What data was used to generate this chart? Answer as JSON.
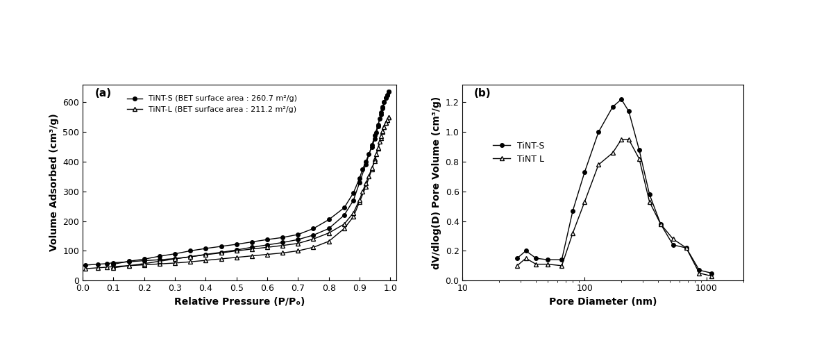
{
  "fig_width": 11.9,
  "fig_height": 4.87,
  "background_color": "#ffffff",
  "panel_a": {
    "label": "(a)",
    "xlabel": "Relative Pressure (P/Pₒ)",
    "ylabel": "Volume Adsorbed (cm³/g)",
    "xlim": [
      0.0,
      1.02
    ],
    "ylim": [
      0,
      660
    ],
    "yticks": [
      0,
      100,
      200,
      300,
      400,
      500,
      600
    ],
    "xticks": [
      0.0,
      0.1,
      0.2,
      0.3,
      0.4,
      0.5,
      0.6,
      0.7,
      0.8,
      0.9,
      1.0
    ],
    "tints_adsorption_x": [
      0.01,
      0.05,
      0.08,
      0.1,
      0.15,
      0.2,
      0.25,
      0.3,
      0.35,
      0.4,
      0.45,
      0.5,
      0.55,
      0.6,
      0.65,
      0.7,
      0.75,
      0.8,
      0.85,
      0.88,
      0.9,
      0.92,
      0.94,
      0.95,
      0.96,
      0.97,
      0.975,
      0.98,
      0.985,
      0.99,
      0.995
    ],
    "tints_adsorption_y": [
      52,
      55,
      57,
      60,
      63,
      67,
      70,
      74,
      80,
      88,
      95,
      103,
      112,
      120,
      128,
      138,
      153,
      175,
      220,
      270,
      330,
      390,
      455,
      490,
      525,
      560,
      580,
      600,
      615,
      625,
      635
    ],
    "tints_desorption_x": [
      0.995,
      0.99,
      0.985,
      0.98,
      0.975,
      0.97,
      0.965,
      0.96,
      0.955,
      0.95,
      0.94,
      0.93,
      0.92,
      0.91,
      0.9,
      0.88,
      0.85,
      0.8,
      0.75,
      0.7,
      0.65,
      0.6,
      0.55,
      0.5,
      0.45,
      0.4,
      0.35,
      0.3,
      0.25,
      0.2,
      0.15,
      0.1
    ],
    "tints_desorption_y": [
      635,
      625,
      615,
      600,
      585,
      565,
      545,
      520,
      498,
      478,
      450,
      425,
      400,
      375,
      345,
      295,
      245,
      205,
      175,
      155,
      145,
      138,
      130,
      122,
      115,
      108,
      100,
      90,
      82,
      72,
      65,
      55
    ],
    "tintl_adsorption_x": [
      0.01,
      0.05,
      0.08,
      0.1,
      0.15,
      0.2,
      0.25,
      0.3,
      0.35,
      0.4,
      0.45,
      0.5,
      0.55,
      0.6,
      0.65,
      0.7,
      0.75,
      0.8,
      0.85,
      0.88,
      0.9,
      0.92,
      0.94,
      0.95,
      0.96,
      0.97,
      0.975,
      0.98,
      0.985,
      0.99,
      0.995
    ],
    "tintl_adsorption_y": [
      40,
      43,
      45,
      47,
      50,
      53,
      56,
      59,
      63,
      68,
      73,
      78,
      83,
      88,
      93,
      100,
      112,
      132,
      175,
      215,
      265,
      315,
      375,
      410,
      445,
      480,
      500,
      517,
      530,
      540,
      550
    ],
    "tintl_desorption_x": [
      0.995,
      0.99,
      0.985,
      0.98,
      0.975,
      0.97,
      0.965,
      0.96,
      0.955,
      0.95,
      0.94,
      0.93,
      0.92,
      0.91,
      0.9,
      0.88,
      0.85,
      0.8,
      0.75,
      0.7,
      0.65,
      0.6,
      0.55,
      0.5,
      0.45,
      0.4,
      0.35,
      0.3,
      0.25,
      0.2,
      0.15,
      0.1
    ],
    "tintl_desorption_y": [
      550,
      540,
      530,
      518,
      504,
      487,
      467,
      447,
      425,
      403,
      378,
      352,
      327,
      300,
      272,
      228,
      190,
      160,
      140,
      125,
      118,
      112,
      106,
      100,
      93,
      87,
      80,
      73,
      65,
      57,
      50,
      43
    ],
    "legend_tints": "TiNT-S (BET surface area : 260.7 m²/g)",
    "legend_tintl": "TiNT-L (BET surface area : 211.2 m²/g)"
  },
  "panel_b": {
    "label": "(b)",
    "xlabel": "Pore Diameter (nm)",
    "ylabel": "dV/dlog(D) Pore Volume (cm³/g)",
    "xlim": [
      10,
      2000
    ],
    "ylim": [
      0,
      1.32
    ],
    "yticks": [
      0.0,
      0.2,
      0.4,
      0.6,
      0.8,
      1.0,
      1.2
    ],
    "tints_x": [
      28,
      33,
      40,
      50,
      65,
      80,
      100,
      130,
      170,
      200,
      230,
      280,
      340,
      420,
      530,
      680,
      870,
      1100
    ],
    "tints_y": [
      0.15,
      0.2,
      0.15,
      0.14,
      0.14,
      0.47,
      0.73,
      1.0,
      1.17,
      1.22,
      1.14,
      0.88,
      0.58,
      0.38,
      0.24,
      0.22,
      0.07,
      0.05
    ],
    "tintl_x": [
      28,
      33,
      40,
      50,
      65,
      80,
      100,
      130,
      170,
      200,
      230,
      280,
      340,
      420,
      530,
      680,
      870,
      1100
    ],
    "tintl_y": [
      0.1,
      0.15,
      0.11,
      0.11,
      0.1,
      0.32,
      0.53,
      0.78,
      0.86,
      0.95,
      0.95,
      0.82,
      0.53,
      0.38,
      0.28,
      0.22,
      0.05,
      0.03
    ],
    "legend_tints": "TiNT-S",
    "legend_tintl": "TiNT L"
  },
  "line_color": "#000000",
  "marker_filled": "o",
  "marker_open": "^",
  "marker_size": 4,
  "line_width": 1.0,
  "font_size_label": 10,
  "font_size_tick": 9,
  "font_size_legend": 8,
  "font_size_panel_label": 11
}
